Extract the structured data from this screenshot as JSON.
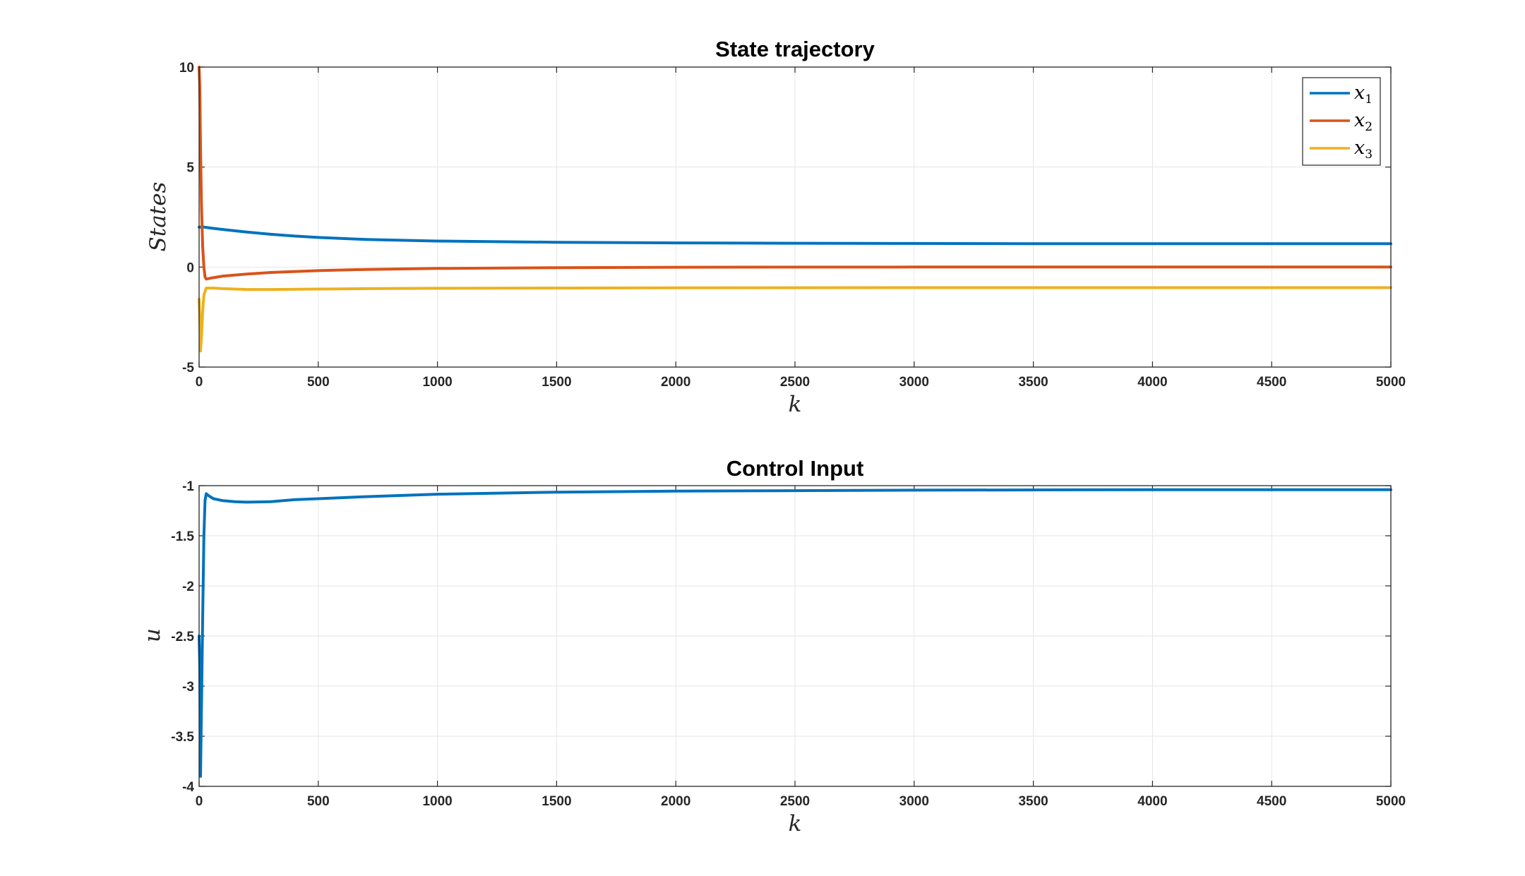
{
  "chart_data": [
    {
      "type": "line",
      "title": "State trajectory",
      "xlabel": "k",
      "ylabel": "States",
      "xlim": [
        0,
        5000
      ],
      "ylim": [
        -5,
        10
      ],
      "xticks": [
        0,
        500,
        1000,
        1500,
        2000,
        2500,
        3000,
        3500,
        4000,
        4500,
        5000
      ],
      "yticks": [
        -5,
        0,
        5,
        10
      ],
      "grid": true,
      "legend_position": "top-right",
      "series": [
        {
          "name": "x1",
          "label_base": "x",
          "label_sub": "1",
          "color": "#0072BD",
          "points": [
            [
              0,
              2.0
            ],
            [
              20,
              2.0
            ],
            [
              50,
              1.95
            ],
            [
              100,
              1.88
            ],
            [
              200,
              1.75
            ],
            [
              300,
              1.64
            ],
            [
              400,
              1.55
            ],
            [
              500,
              1.48
            ],
            [
              700,
              1.38
            ],
            [
              1000,
              1.3
            ],
            [
              1500,
              1.24
            ],
            [
              2000,
              1.21
            ],
            [
              2500,
              1.19
            ],
            [
              3000,
              1.18
            ],
            [
              3500,
              1.17
            ],
            [
              4000,
              1.17
            ],
            [
              4500,
              1.17
            ],
            [
              5000,
              1.17
            ]
          ]
        },
        {
          "name": "x2",
          "label_base": "x",
          "label_sub": "2",
          "color": "#D95319",
          "points": [
            [
              0,
              10.0
            ],
            [
              3,
              9.0
            ],
            [
              6,
              6.0
            ],
            [
              10,
              3.0
            ],
            [
              15,
              1.0
            ],
            [
              20,
              0.0
            ],
            [
              25,
              -0.5
            ],
            [
              30,
              -0.6
            ],
            [
              50,
              -0.55
            ],
            [
              100,
              -0.45
            ],
            [
              200,
              -0.35
            ],
            [
              300,
              -0.27
            ],
            [
              500,
              -0.18
            ],
            [
              700,
              -0.12
            ],
            [
              1000,
              -0.07
            ],
            [
              1500,
              -0.03
            ],
            [
              2000,
              -0.01
            ],
            [
              3000,
              0.0
            ],
            [
              5000,
              0.0
            ]
          ]
        },
        {
          "name": "x3",
          "label_base": "x",
          "label_sub": "3",
          "color": "#EDB120",
          "points": [
            [
              0,
              -1.6
            ],
            [
              3,
              -2.5
            ],
            [
              6,
              -4.2
            ],
            [
              10,
              -3.5
            ],
            [
              15,
              -2.2
            ],
            [
              20,
              -1.4
            ],
            [
              30,
              -1.05
            ],
            [
              60,
              -1.05
            ],
            [
              100,
              -1.08
            ],
            [
              200,
              -1.12
            ],
            [
              300,
              -1.12
            ],
            [
              500,
              -1.1
            ],
            [
              700,
              -1.08
            ],
            [
              1000,
              -1.06
            ],
            [
              1500,
              -1.05
            ],
            [
              2000,
              -1.04
            ],
            [
              3000,
              -1.03
            ],
            [
              5000,
              -1.03
            ]
          ]
        }
      ]
    },
    {
      "type": "line",
      "title": "Control Input",
      "xlabel": "k",
      "ylabel": "u",
      "xlim": [
        0,
        5000
      ],
      "ylim": [
        -4,
        -1
      ],
      "xticks": [
        0,
        500,
        1000,
        1500,
        2000,
        2500,
        3000,
        3500,
        4000,
        4500,
        5000
      ],
      "yticks": [
        -4,
        -3.5,
        -3,
        -2.5,
        -2,
        -1.5,
        -1
      ],
      "grid": true,
      "series": [
        {
          "color": "#0072BD",
          "points": [
            [
              0,
              -2.5
            ],
            [
              3,
              -2.8
            ],
            [
              6,
              -3.9
            ],
            [
              10,
              -3.2
            ],
            [
              15,
              -2.3
            ],
            [
              20,
              -1.5
            ],
            [
              25,
              -1.15
            ],
            [
              30,
              -1.08
            ],
            [
              40,
              -1.1
            ],
            [
              60,
              -1.13
            ],
            [
              100,
              -1.15
            ],
            [
              150,
              -1.16
            ],
            [
              200,
              -1.165
            ],
            [
              300,
              -1.16
            ],
            [
              400,
              -1.14
            ],
            [
              500,
              -1.13
            ],
            [
              700,
              -1.11
            ],
            [
              1000,
              -1.085
            ],
            [
              1500,
              -1.065
            ],
            [
              2000,
              -1.055
            ],
            [
              2500,
              -1.05
            ],
            [
              3000,
              -1.045
            ],
            [
              4000,
              -1.04
            ],
            [
              5000,
              -1.04
            ]
          ]
        }
      ]
    }
  ]
}
